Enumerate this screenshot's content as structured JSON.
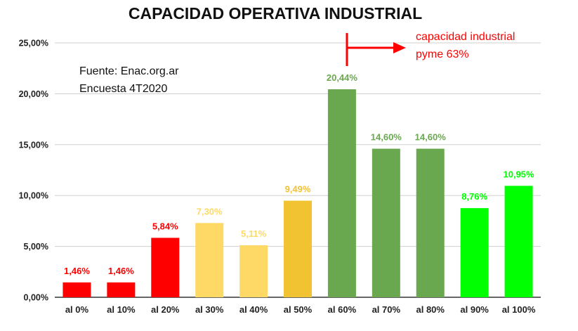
{
  "chart_data": {
    "type": "bar",
    "title": "CAPACIDAD OPERATIVA INDUSTRIAL",
    "categories": [
      "al 0%",
      "al 10%",
      "al 20%",
      "al 30%",
      "al 40%",
      "al 50%",
      "al 60%",
      "al 70%",
      "al 80%",
      "al 90%",
      "al 100%"
    ],
    "values": [
      1.46,
      1.46,
      5.84,
      7.3,
      5.11,
      9.49,
      20.44,
      14.6,
      14.6,
      8.76,
      10.95
    ],
    "data_labels": [
      "1,46%",
      "1,46%",
      "5,84%",
      "7,30%",
      "5,11%",
      "9,49%",
      "20,44%",
      "14,60%",
      "14,60%",
      "8,76%",
      "10,95%"
    ],
    "bar_colors": [
      "#ff0000",
      "#ff0000",
      "#ff0000",
      "#ffd966",
      "#ffd966",
      "#f1c232",
      "#6aa84f",
      "#6aa84f",
      "#6aa84f",
      "#00ff00",
      "#00ff00"
    ],
    "ylim": [
      0,
      25
    ],
    "yticks": [
      0,
      5,
      10,
      15,
      20,
      25
    ],
    "ytick_labels": [
      "0,00%",
      "5,00%",
      "10,00%",
      "15,00%",
      "20,00%",
      "25,00%"
    ],
    "grid": true,
    "xlabel": "",
    "ylabel": "",
    "source_lines": [
      "Fuente: Enac.org.ar",
      "Encuesta 4T2020"
    ],
    "annotation": {
      "lines": [
        "capacidad industrial",
        "pyme 63%"
      ],
      "color": "#ff0000"
    }
  }
}
